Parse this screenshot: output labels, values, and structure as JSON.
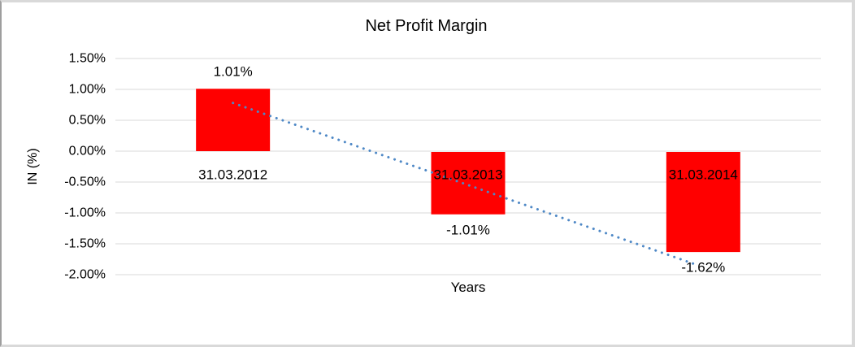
{
  "window": {
    "background": "#ffffff",
    "frame_border_color": "#d9d9d9",
    "frame_border_left_color": "#9e9e9e"
  },
  "chart_data": {
    "type": "bar",
    "title": "Net Profit Margin",
    "xlabel": "Years",
    "ylabel": "IN (%)",
    "categories": [
      "31.03.2012",
      "31.03.2013",
      "31.03.2014"
    ],
    "values": [
      1.01,
      -1.01,
      -1.62
    ],
    "data_labels": [
      "1.01%",
      "-1.01%",
      "-1.62%"
    ],
    "y_ticks": [
      1.5,
      1.0,
      0.5,
      0.0,
      -0.5,
      -1.0,
      -1.5,
      -2.0
    ],
    "y_tick_labels": [
      "1.50%",
      "1.00%",
      "0.50%",
      "0.00%",
      "-0.50%",
      "-1.00%",
      "-1.50%",
      "-2.00%"
    ],
    "ylim": [
      -2.0,
      1.5
    ],
    "grid": true,
    "gridline_color": "#d9d9d9",
    "bar_color": "#ff0000",
    "text_color": "#000000",
    "legend": "none",
    "trendline": {
      "style": "dotted",
      "color": "#4e88c6",
      "start_value": 0.78,
      "end_value": -1.85
    }
  }
}
